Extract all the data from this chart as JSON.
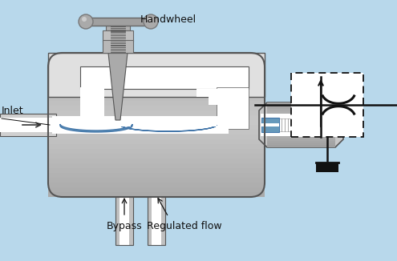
{
  "bg_color": "#b8d8eb",
  "labels": {
    "handwheel": "Handwheel",
    "inlet": "Inlet",
    "bypass": "Bypass",
    "regulated_flow": "Regulated flow"
  },
  "gray_light": "#d8d8d8",
  "gray_mid": "#aaaaaa",
  "gray_dark": "#888888",
  "gray_body1": "#c0c0c0",
  "gray_body2": "#d4d4d4",
  "gray_body3": "#e8e8e8",
  "gray_body4": "#f0f0f0",
  "blue_accent": "#6699bb",
  "blue_dark": "#4477aa",
  "white": "#ffffff",
  "black": "#111111",
  "outline": "#555555"
}
